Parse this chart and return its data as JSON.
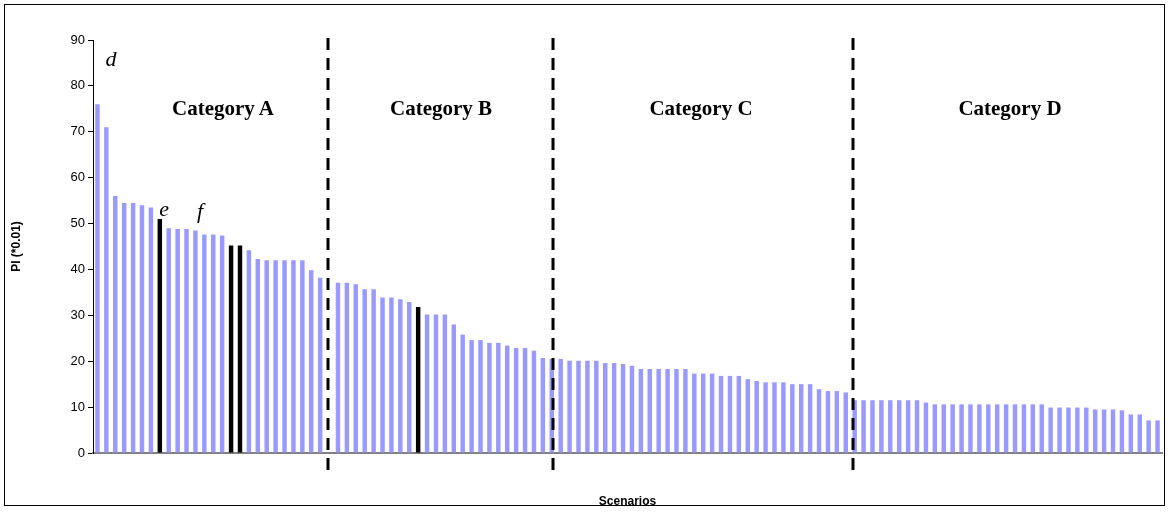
{
  "chart_data": {
    "type": "bar",
    "xlabel": "Scenarios",
    "ylabel": "PI (*0.01)",
    "categories": [
      null,
      null,
      null,
      null,
      null,
      null,
      null,
      null,
      null,
      null,
      null,
      null,
      null,
      null,
      null,
      null,
      null,
      null,
      null,
      null,
      null,
      null,
      null,
      null,
      null,
      null,
      null,
      null,
      null,
      null,
      null,
      null,
      null,
      null,
      null,
      null,
      null,
      null,
      null,
      null,
      null,
      null,
      null,
      null,
      null,
      null,
      null,
      null,
      null,
      null,
      null,
      null,
      null,
      null,
      null,
      null,
      null,
      null,
      null,
      null,
      null,
      null,
      null,
      null,
      null,
      null,
      null,
      null,
      null,
      null,
      null,
      null,
      null,
      null,
      null,
      null,
      null,
      null,
      null,
      null,
      null,
      null,
      null,
      null,
      null,
      null,
      null,
      null,
      null,
      null,
      null,
      null,
      null,
      null,
      null,
      null,
      null,
      null,
      null,
      null,
      null,
      null,
      null,
      null,
      null,
      null,
      null,
      null,
      null,
      null,
      null,
      null,
      null,
      null,
      null,
      null,
      null,
      null,
      null,
      null
    ],
    "values": [
      76,
      71,
      56,
      54.5,
      54.5,
      54,
      53.5,
      51,
      49,
      48.8,
      48.8,
      48.5,
      47.6,
      47.6,
      47.4,
      45.2,
      45.2,
      44.2,
      42.3,
      42,
      42,
      42,
      42,
      42,
      39.8,
      38.2,
      null,
      37.1,
      37.1,
      36.8,
      35.7,
      35.7,
      33.9,
      33.9,
      33.5,
      32.9,
      31.8,
      30.2,
      30.2,
      30.2,
      28,
      25.8,
      24.6,
      24.6,
      24,
      24,
      23.4,
      22.9,
      22.9,
      22.3,
      20.7,
      20.5,
      20.5,
      20.1,
      20.1,
      20.1,
      20.1,
      19.6,
      19.6,
      19.4,
      19,
      18.3,
      18.3,
      18.3,
      18.3,
      18.3,
      18.3,
      17.3,
      17.3,
      17.3,
      16.8,
      16.8,
      16.8,
      16.1,
      15.7,
      15.4,
      15.4,
      15.4,
      15,
      15,
      15,
      13.9,
      13.5,
      13.5,
      13.2,
      11.5,
      11.5,
      11.5,
      11.5,
      11.5,
      11.5,
      11.5,
      11.5,
      11,
      10.6,
      10.6,
      10.6,
      10.6,
      10.6,
      10.6,
      10.6,
      10.6,
      10.6,
      10.6,
      10.6,
      10.6,
      10.6,
      9.9,
      9.9,
      9.9,
      9.9,
      9.9,
      9.5,
      9.5,
      9.5,
      9.3,
      8.4,
      8.4,
      7.1,
      7.1
    ],
    "colors": [
      "#9999ff",
      "#9999ff",
      "#9999ff",
      "#9999ff",
      "#9999ff",
      "#9999ff",
      "#9999ff",
      "#000000",
      "#9999ff",
      "#9999ff",
      "#9999ff",
      "#9999ff",
      "#9999ff",
      "#9999ff",
      "#9999ff",
      "#000000",
      "#000000",
      "#9999ff",
      "#9999ff",
      "#9999ff",
      "#9999ff",
      "#9999ff",
      "#9999ff",
      "#9999ff",
      "#9999ff",
      "#9999ff",
      "#9999ff",
      "#9999ff",
      "#9999ff",
      "#9999ff",
      "#9999ff",
      "#9999ff",
      "#9999ff",
      "#9999ff",
      "#9999ff",
      "#9999ff",
      "#000000",
      "#9999ff",
      "#9999ff",
      "#9999ff",
      "#9999ff",
      "#9999ff",
      "#9999ff",
      "#9999ff",
      "#9999ff",
      "#9999ff",
      "#9999ff",
      "#9999ff",
      "#9999ff",
      "#9999ff",
      "#9999ff",
      "#9999ff",
      "#9999ff",
      "#9999ff",
      "#9999ff",
      "#9999ff",
      "#9999ff",
      "#9999ff",
      "#9999ff",
      "#9999ff",
      "#9999ff",
      "#9999ff",
      "#9999ff",
      "#9999ff",
      "#9999ff",
      "#9999ff",
      "#9999ff",
      "#9999ff",
      "#9999ff",
      "#9999ff",
      "#9999ff",
      "#9999ff",
      "#9999ff",
      "#9999ff",
      "#9999ff",
      "#9999ff",
      "#9999ff",
      "#9999ff",
      "#9999ff",
      "#9999ff",
      "#9999ff",
      "#9999ff",
      "#9999ff",
      "#9999ff",
      "#9999ff",
      "#9999ff",
      "#9999ff",
      "#9999ff",
      "#9999ff",
      "#9999ff",
      "#9999ff",
      "#9999ff",
      "#9999ff",
      "#9999ff",
      "#9999ff",
      "#9999ff",
      "#9999ff",
      "#9999ff",
      "#9999ff",
      "#9999ff",
      "#9999ff",
      "#9999ff",
      "#9999ff",
      "#9999ff",
      "#9999ff",
      "#9999ff",
      "#9999ff",
      "#9999ff",
      "#9999ff",
      "#9999ff",
      "#9999ff",
      "#9999ff",
      "#9999ff",
      "#9999ff",
      "#9999ff",
      "#9999ff",
      "#9999ff",
      "#9999ff",
      "#9999ff",
      "#9999ff"
    ],
    "ylim": [
      0,
      90
    ],
    "yticks": [
      0,
      10,
      20,
      30,
      40,
      50,
      60,
      70,
      80,
      90
    ],
    "grid": false,
    "legend": false,
    "annotations": [
      "d",
      "e",
      "f",
      "Category A",
      "Category B",
      "Category C",
      "Category D"
    ]
  }
}
